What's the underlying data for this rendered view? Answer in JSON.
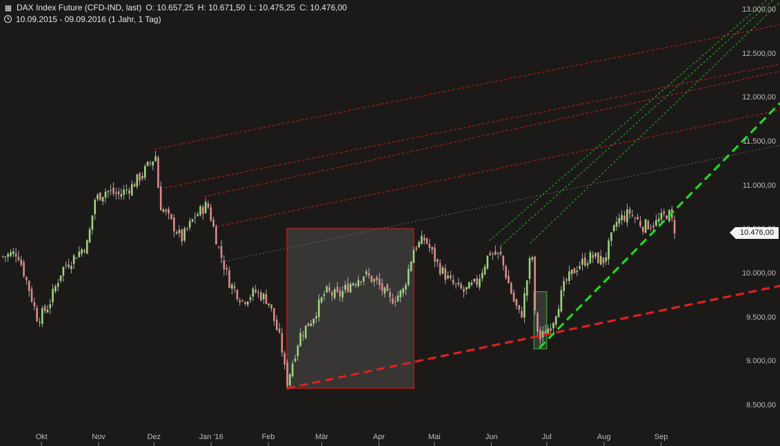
{
  "header": {
    "instrument": "DAX Index Future (CFD-IND, last)",
    "open": "O: 10.657,25",
    "high": "H: 10.671,50",
    "low": "L: 10.475,25",
    "close": "C: 10.476,00",
    "range": "10.09.2015 - 09.09.2016 (1 Jahr, 1 Tag)",
    "chart_icon": "candlestick-icon",
    "clock_icon": "clock-icon"
  },
  "last_price": "10.476,00",
  "colors": {
    "background": "#1c1a19",
    "up": "#9cd67c",
    "down": "#e08a8a",
    "red_line": "#e02020",
    "green_line": "#22d922",
    "box": "#3b3a39"
  },
  "chart_data": {
    "type": "candlestick",
    "title": "DAX Index Future (CFD-IND, last)",
    "xlabel": "",
    "ylabel": "",
    "ylim": [
      8300,
      13100
    ],
    "y_ticks": [
      "8.500,00",
      "9.000,00",
      "9.500,00",
      "10.000,00",
      "10.500,00",
      "11.000,00",
      "11.500,00",
      "12.000,00",
      "12.500,00",
      "13.000,00"
    ],
    "y_tick_values": [
      8500,
      9000,
      9500,
      10000,
      10500,
      11000,
      11500,
      12000,
      12500,
      13000
    ],
    "x_ticks": [
      "Okt",
      "Nov",
      "Dez",
      "Jan '16",
      "Feb",
      "Mär",
      "Apr",
      "Mai",
      "Jun",
      "Jul",
      "Aug",
      "Sep"
    ],
    "x_tick_dates": [
      "2015-10-01",
      "2015-11-01",
      "2015-12-01",
      "2016-01-01",
      "2016-02-01",
      "2016-03-01",
      "2016-04-01",
      "2016-05-01",
      "2016-06-01",
      "2016-07-01",
      "2016-08-01",
      "2016-09-01"
    ],
    "close_series": {
      "name": "",
      "points": [
        [
          "2015-09-10",
          10200
        ],
        [
          "2015-09-18",
          10250
        ],
        [
          "2015-09-24",
          9850
        ],
        [
          "2015-09-29",
          9480
        ],
        [
          "2015-10-05",
          9650
        ],
        [
          "2015-10-12",
          10050
        ],
        [
          "2015-10-19",
          10200
        ],
        [
          "2015-10-26",
          10350
        ],
        [
          "2015-10-30",
          10850
        ],
        [
          "2015-11-05",
          10950
        ],
        [
          "2015-11-12",
          10900
        ],
        [
          "2015-11-19",
          11000
        ],
        [
          "2015-11-25",
          11150
        ],
        [
          "2015-12-02",
          11350
        ],
        [
          "2015-12-04",
          10800
        ],
        [
          "2015-12-10",
          10600
        ],
        [
          "2015-12-16",
          10400
        ],
        [
          "2015-12-23",
          10650
        ],
        [
          "2015-12-30",
          10800
        ],
        [
          "2016-01-05",
          10300
        ],
        [
          "2016-01-11",
          9900
        ],
        [
          "2016-01-18",
          9700
        ],
        [
          "2016-01-25",
          9800
        ],
        [
          "2016-02-01",
          9700
        ],
        [
          "2016-02-08",
          9200
        ],
        [
          "2016-02-11",
          8750
        ],
        [
          "2016-02-18",
          9300
        ],
        [
          "2016-02-25",
          9500
        ],
        [
          "2016-03-03",
          9800
        ],
        [
          "2016-03-10",
          9750
        ],
        [
          "2016-03-17",
          9900
        ],
        [
          "2016-03-24",
          10000
        ],
        [
          "2016-03-31",
          9900
        ],
        [
          "2016-04-07",
          9700
        ],
        [
          "2016-04-14",
          9800
        ],
        [
          "2016-04-20",
          10300
        ],
        [
          "2016-04-26",
          10400
        ],
        [
          "2016-05-03",
          10100
        ],
        [
          "2016-05-10",
          9900
        ],
        [
          "2016-05-17",
          9800
        ],
        [
          "2016-05-24",
          9900
        ],
        [
          "2016-05-31",
          10250
        ],
        [
          "2016-06-06",
          10200
        ],
        [
          "2016-06-13",
          9700
        ],
        [
          "2016-06-17",
          9500
        ],
        [
          "2016-06-23",
          10300
        ],
        [
          "2016-06-24",
          9600
        ],
        [
          "2016-06-27",
          9250
        ],
        [
          "2016-07-04",
          9450
        ],
        [
          "2016-07-11",
          9900
        ],
        [
          "2016-07-18",
          10100
        ],
        [
          "2016-07-25",
          10200
        ],
        [
          "2016-08-01",
          10150
        ],
        [
          "2016-08-08",
          10600
        ],
        [
          "2016-08-15",
          10700
        ],
        [
          "2016-08-22",
          10550
        ],
        [
          "2016-08-29",
          10580
        ],
        [
          "2016-09-05",
          10700
        ],
        [
          "2016-09-09",
          10476
        ]
      ]
    },
    "red_trendline_thick": {
      "start": [
        "2016-02-11",
        8700
      ],
      "end": [
        "2016-09-09",
        9620
      ]
    },
    "green_trendline_thick": {
      "start": [
        "2016-06-27",
        9160
      ],
      "end": [
        "2016-09-09",
        10740
      ]
    },
    "red_channel_lines": [
      {
        "start": [
          "2015-12-01",
          11420
        ],
        "end": [
          "2016-09-09",
          12600
        ]
      },
      {
        "start": [
          "2015-12-07",
          10980
        ],
        "end": [
          "2016-09-09",
          12150
        ]
      },
      {
        "start": [
          "2015-12-28",
          10880
        ],
        "end": [
          "2016-09-09",
          12050
        ]
      },
      {
        "start": [
          "2016-01-04",
          10540
        ],
        "end": [
          "2016-09-09",
          11620
        ]
      }
    ],
    "green_channel_lines": [
      {
        "start": [
          "2016-05-31",
          10380
        ],
        "end": [
          "2016-09-09",
          12220
        ]
      },
      {
        "start": [
          "2016-06-06",
          10320
        ],
        "end": [
          "2016-09-09",
          12120
        ]
      },
      {
        "start": [
          "2016-06-22",
          10350
        ],
        "end": [
          "2016-09-09",
          11950
        ]
      }
    ],
    "gray_dotted_line": {
      "start": [
        "2016-01-07",
        10140
      ],
      "end": [
        "2016-09-09",
        11220
      ]
    },
    "rectangles": [
      {
        "from": "2016-02-11",
        "to": "2016-04-20",
        "low": 8700,
        "high": 10520
      },
      {
        "from": "2016-06-24",
        "to": "2016-07-01",
        "low": 9150,
        "high": 9800
      }
    ],
    "grid": false,
    "legend": "none"
  }
}
